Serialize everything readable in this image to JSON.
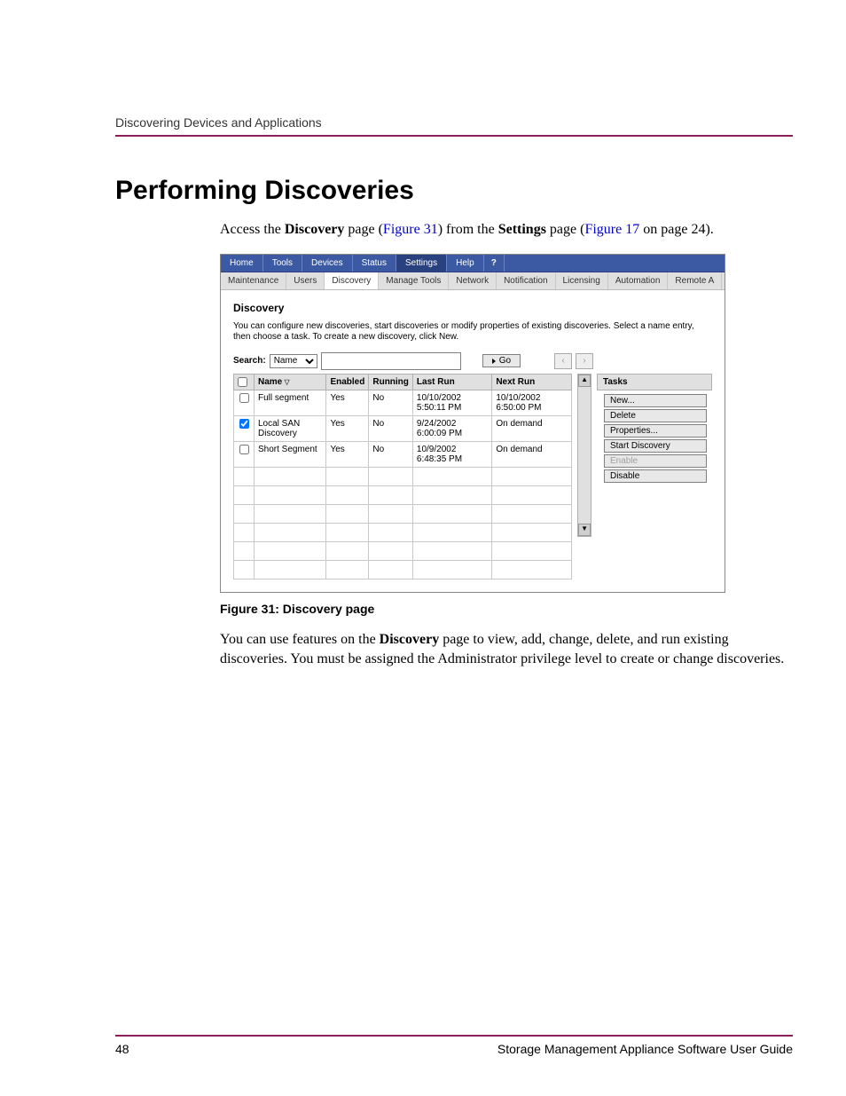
{
  "runningHeader": "Discovering Devices and Applications",
  "heading": "Performing Discoveries",
  "intro_html": "Access the <b>Discovery</b> page (<a href='#'>Figure 31</a>) from the <b>Settings</b> page (<a href='#'>Figure 17</a> on page 24).",
  "figCaption": "Figure 31:  Discovery page",
  "followup_html": "You can use features on the <b>Discovery</b> page to view, add, change, delete, and run existing discoveries. You must be assigned the Administrator privilege level to create or change discoveries.",
  "footer": {
    "pageNum": "48",
    "docTitle": "Storage Management Appliance Software User Guide"
  },
  "screenshot": {
    "tabs1": [
      "Home",
      "Tools",
      "Devices",
      "Status",
      "Settings",
      "Help"
    ],
    "tabs1_active": "Settings",
    "helpGlyph": "?",
    "tabs2": [
      "Maintenance",
      "Users",
      "Discovery",
      "Manage Tools",
      "Network",
      "Notification",
      "Licensing",
      "Automation",
      "Remote A"
    ],
    "tabs2_active": "Discovery",
    "sectionTitle": "Discovery",
    "description": "You can configure new discoveries, start discoveries or modify properties of existing discoveries. Select a name entry, then choose a task. To create a new discovery, click New.",
    "searchLabel": "Search:",
    "searchField": "Name",
    "searchValue": "",
    "goLabel": "Go",
    "columns": [
      "Name",
      "Enabled",
      "Running",
      "Last Run",
      "Next Run"
    ],
    "rows": [
      {
        "sel": false,
        "name": "Full segment",
        "enabled": "Yes",
        "running": "No",
        "last": "10/10/2002 5:50:11 PM",
        "next": "10/10/2002 6:50:00 PM"
      },
      {
        "sel": true,
        "name": "Local SAN Discovery",
        "enabled": "Yes",
        "running": "No",
        "last": "9/24/2002 6:00:09 PM",
        "next": "On demand"
      },
      {
        "sel": false,
        "name": "Short Segment",
        "enabled": "Yes",
        "running": "No",
        "last": "10/9/2002 6:48:35 PM",
        "next": "On demand"
      }
    ],
    "emptyRows": 6,
    "tasksHeader": "Tasks",
    "tasks": [
      {
        "label": "New...",
        "enabled": true
      },
      {
        "label": "Delete",
        "enabled": true
      },
      {
        "label": "Properties...",
        "enabled": true
      },
      {
        "label": "Start Discovery",
        "enabled": true
      },
      {
        "label": "Enable",
        "enabled": false
      },
      {
        "label": "Disable",
        "enabled": true
      }
    ]
  }
}
